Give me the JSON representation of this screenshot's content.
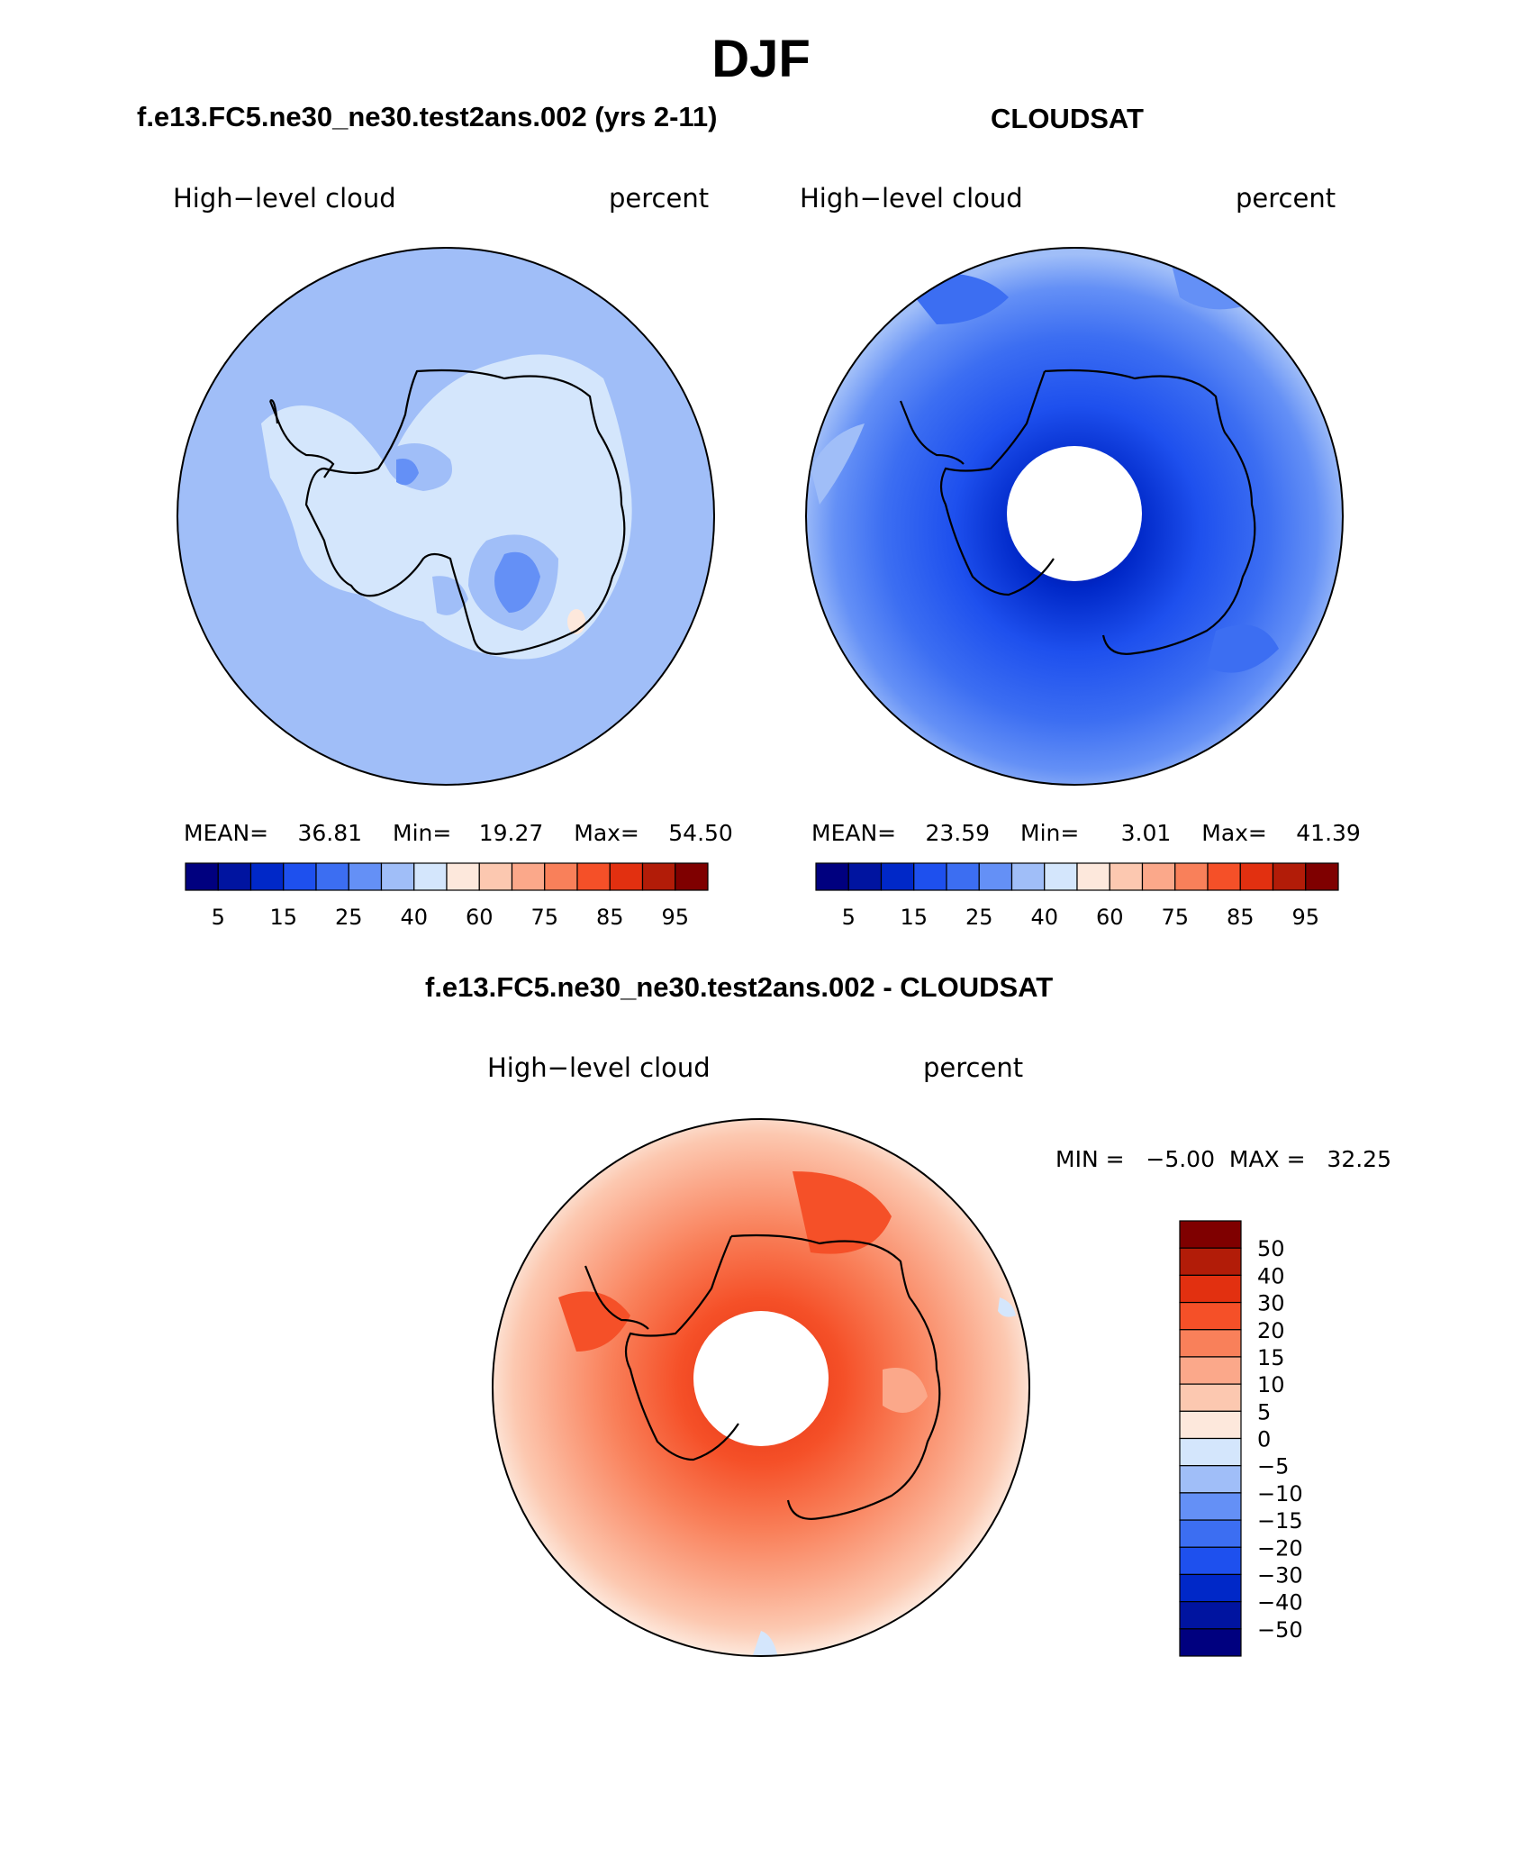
{
  "page_title": "DJF",
  "panels": [
    {
      "title": "f.e13.FC5.ne30_ne30.test2ans.002 (yrs 2-11)",
      "variable": "High−level cloud",
      "units": "percent",
      "stats": {
        "mean_label": "MEAN=",
        "mean": "36.81",
        "min_label": "Min=",
        "min": "19.27",
        "max_label": "Max=",
        "max": "54.50"
      }
    },
    {
      "title": "CLOUDSAT",
      "variable": "High−level cloud",
      "units": "percent",
      "stats": {
        "mean_label": "MEAN=",
        "mean": "23.59",
        "min_label": "Min=",
        "min": "3.01",
        "max_label": "Max=",
        "max": "41.39"
      }
    }
  ],
  "diff_panel": {
    "title": "f.e13.FC5.ne30_ne30.test2ans.002 - CLOUDSAT",
    "variable": "High−level cloud",
    "units": "percent",
    "minmax_text": "MIN =   −5.00  MAX =   32.25"
  },
  "colorbar_main": {
    "colors": [
      "#00007f",
      "#0014a0",
      "#0028c8",
      "#1e50ee",
      "#3c6ef2",
      "#6490f6",
      "#a0bef8",
      "#d4e6fc",
      "#fde8dc",
      "#fcc8b0",
      "#fba88a",
      "#f9805a",
      "#f55028",
      "#e23010",
      "#b21c08",
      "#7f0000"
    ],
    "labels": [
      "5",
      "15",
      "25",
      "40",
      "60",
      "75",
      "85",
      "95"
    ]
  },
  "colorbar_diff": {
    "colors": [
      "#7f0000",
      "#b21c08",
      "#e23010",
      "#f55028",
      "#f9805a",
      "#fba88a",
      "#fcc8b0",
      "#fde8dc",
      "#d4e6fc",
      "#a0bef8",
      "#6490f6",
      "#3c6ef2",
      "#1e50ee",
      "#0028c8",
      "#0014a0",
      "#00007f"
    ],
    "labels": [
      "50",
      "40",
      "30",
      "20",
      "15",
      "10",
      "5",
      "0",
      "−5",
      "−10",
      "−15",
      "−20",
      "−30",
      "−40",
      "−50"
    ]
  },
  "chart_data": [
    {
      "type": "heatmap",
      "projection": "south polar stereographic",
      "title": "f.e13.FC5.ne30_ne30.test2ans.002 (yrs 2-11)",
      "variable": "High-level cloud",
      "units": "percent",
      "mean": 36.81,
      "min": 19.27,
      "max": 54.5,
      "levels": [
        5,
        10,
        15,
        20,
        25,
        30,
        40,
        50,
        60,
        70,
        75,
        80,
        85,
        90,
        95
      ],
      "colorbar_labels": [
        5,
        15,
        25,
        40,
        60,
        75,
        85,
        95
      ]
    },
    {
      "type": "heatmap",
      "projection": "south polar stereographic",
      "title": "CLOUDSAT",
      "variable": "High-level cloud",
      "units": "percent",
      "mean": 23.59,
      "min": 3.01,
      "max": 41.39,
      "levels": [
        5,
        10,
        15,
        20,
        25,
        30,
        40,
        50,
        60,
        70,
        75,
        80,
        85,
        90,
        95
      ],
      "colorbar_labels": [
        5,
        15,
        25,
        40,
        60,
        75,
        85,
        95
      ]
    },
    {
      "type": "heatmap",
      "projection": "south polar stereographic",
      "title": "f.e13.FC5.ne30_ne30.test2ans.002 - CLOUDSAT",
      "variable": "High-level cloud",
      "units": "percent",
      "min": -5.0,
      "max": 32.25,
      "levels": [
        -50,
        -40,
        -30,
        -20,
        -15,
        -10,
        -5,
        0,
        5,
        10,
        15,
        20,
        30,
        40,
        50
      ]
    }
  ]
}
